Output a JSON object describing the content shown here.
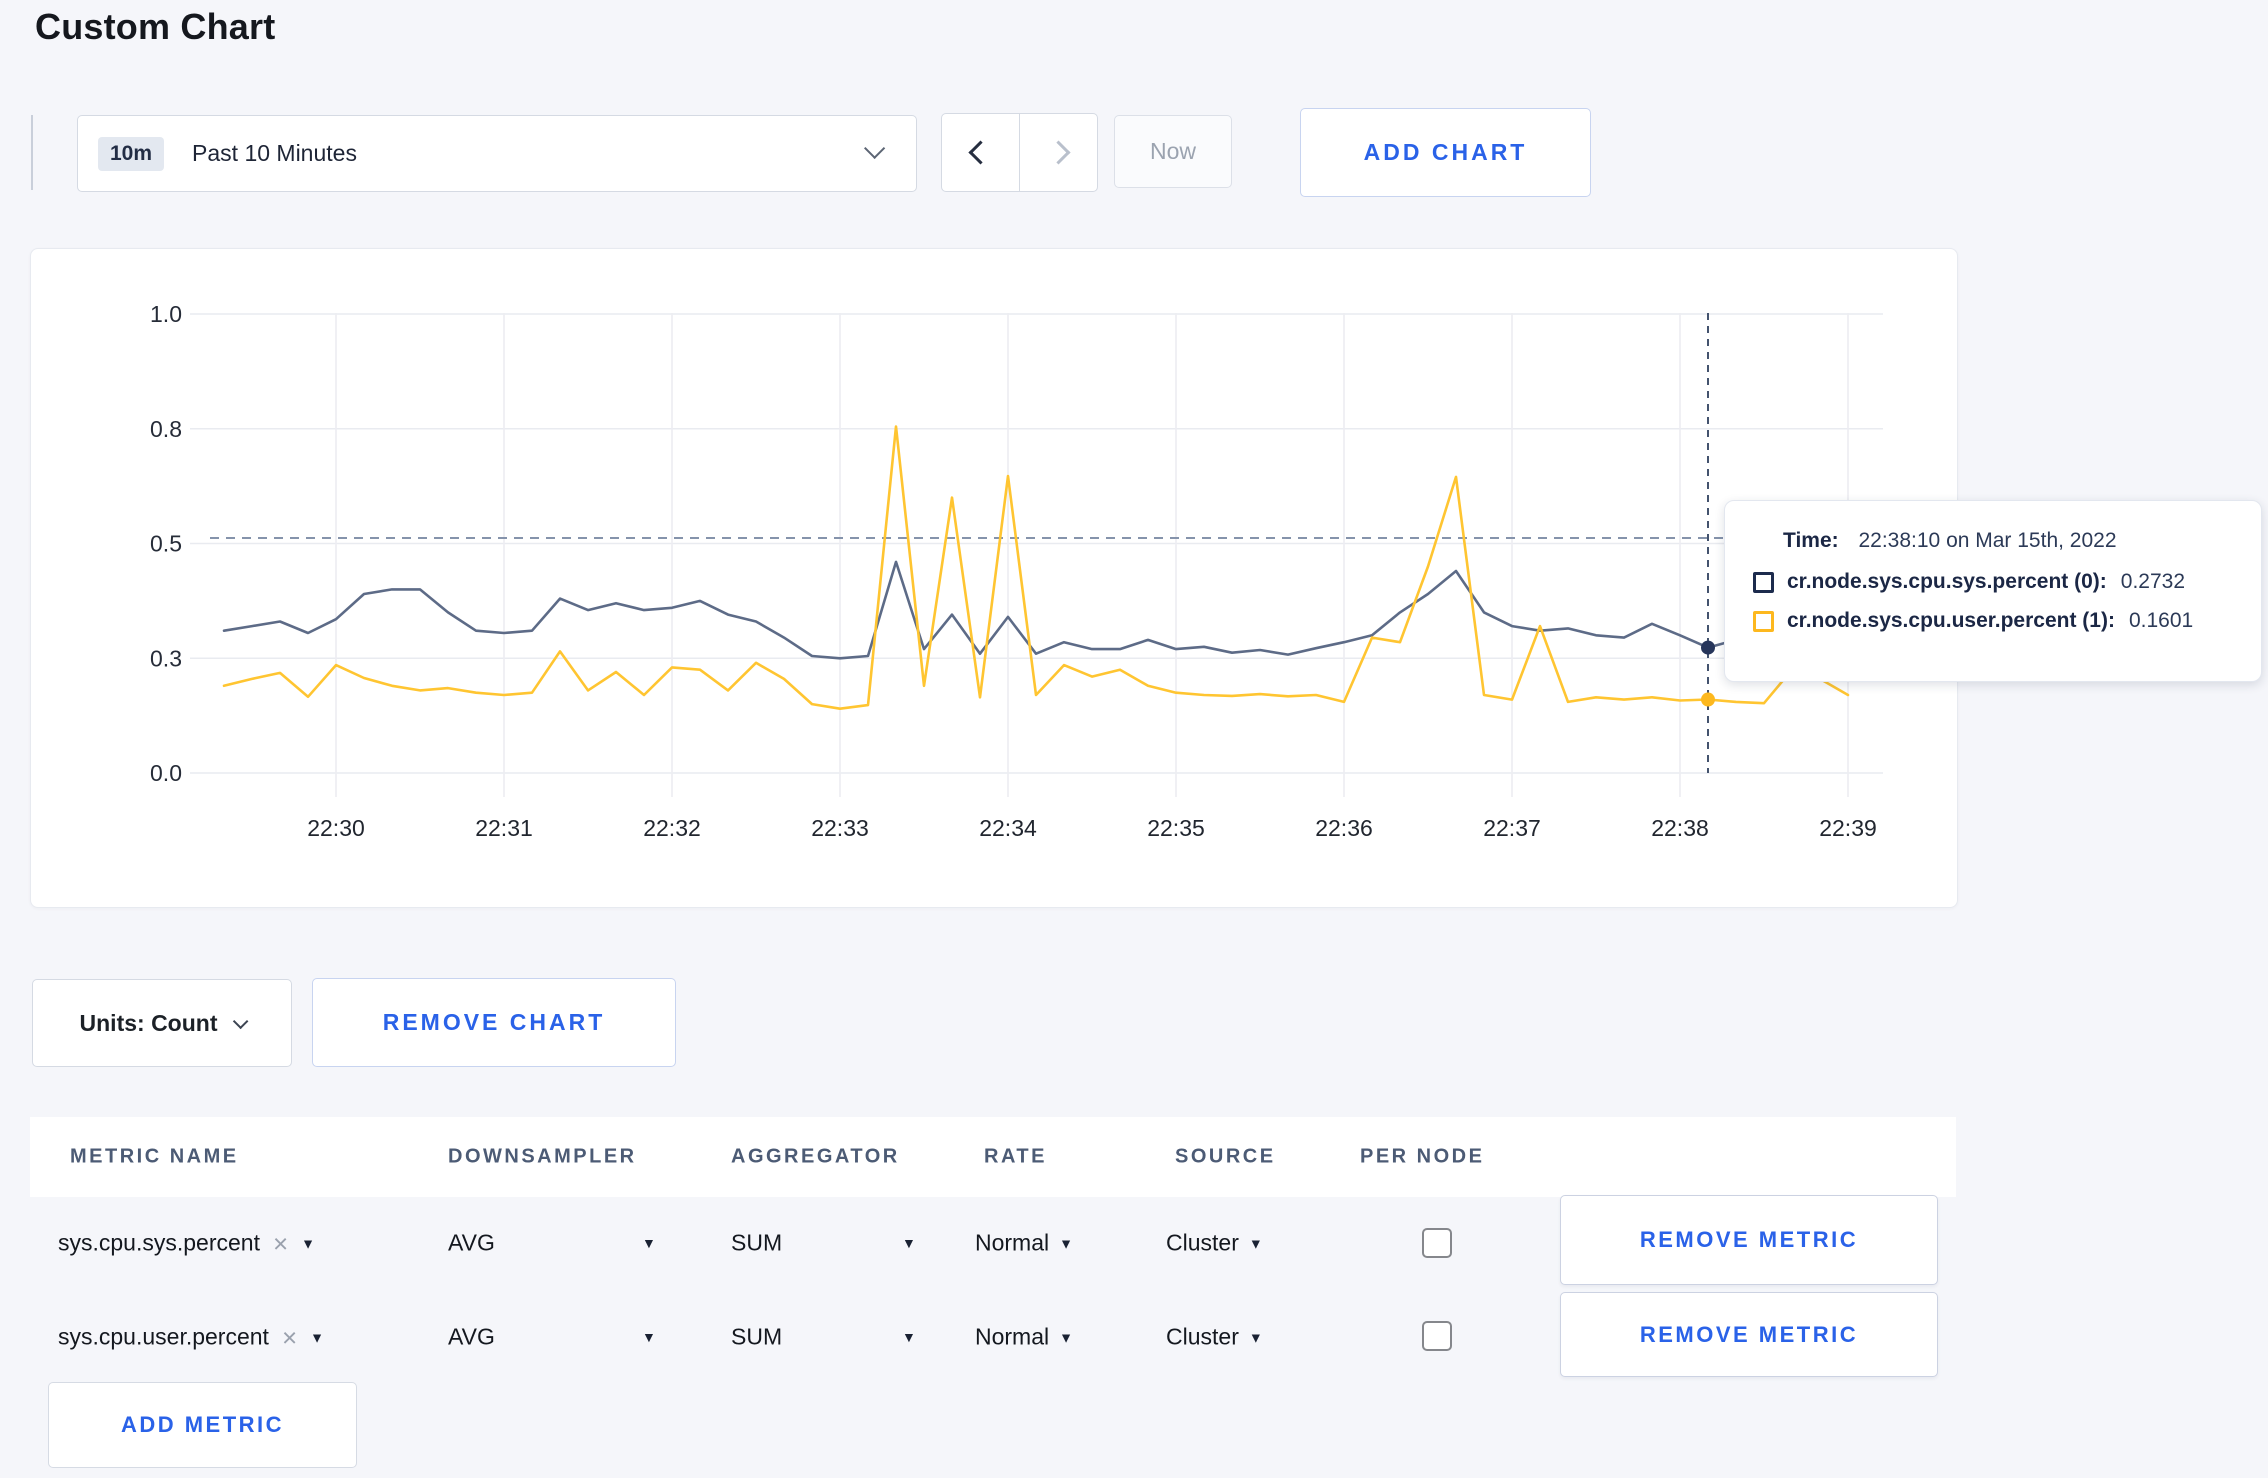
{
  "page": {
    "title": "Custom Chart",
    "background": "#f5f6fa",
    "accent_blue": "#2a62e8"
  },
  "toolbar": {
    "time_badge": "10m",
    "time_range_label": "Past 10 Minutes",
    "prev_icon": "chevron-left",
    "next_icon": "chevron-right",
    "now_label": "Now",
    "add_chart_label": "ADD CHART"
  },
  "chart_controls": {
    "units_label": "Units: Count",
    "remove_chart_label": "REMOVE CHART"
  },
  "tooltip": {
    "time_label": "Time:",
    "time_value": "22:38:10 on Mar 15th, 2022",
    "series": [
      {
        "label": "cr.node.sys.cpu.sys.percent (0):",
        "value": "0.2732",
        "color": "#1c2b4d"
      },
      {
        "label": "cr.node.sys.cpu.user.percent (1):",
        "value": "0.1601",
        "color": "#fdb81e"
      }
    ]
  },
  "chart_data": {
    "type": "line",
    "title": "",
    "xlabel": "",
    "ylabel": "",
    "ylim": [
      0,
      1.0
    ],
    "y_tick_values": [
      1.0,
      0.75,
      0.5,
      0.25,
      0
    ],
    "y_tick_labels": [
      "1.0",
      "0.8",
      "0.5",
      "0.3",
      "0.0"
    ],
    "x_tick_labels": [
      "22:30",
      "22:31",
      "22:32",
      "22:33",
      "22:34",
      "22:35",
      "22:36",
      "22:37",
      "22:38",
      "22:39"
    ],
    "grid": true,
    "legend_position": "tooltip",
    "threshold_line": {
      "value": 0.512,
      "style": "dashed",
      "color": "#8593ab"
    },
    "crosshair": {
      "time": "22:38:10",
      "values": [
        0.2732,
        0.1601
      ],
      "marker_colors": [
        "#26355a",
        "#fdb81e"
      ],
      "line_color": "#44536e"
    },
    "x": [
      "22:29:20",
      "22:29:30",
      "22:29:40",
      "22:29:50",
      "22:30:00",
      "22:30:10",
      "22:30:20",
      "22:30:30",
      "22:30:40",
      "22:30:50",
      "22:31:00",
      "22:31:10",
      "22:31:20",
      "22:31:30",
      "22:31:40",
      "22:31:50",
      "22:32:00",
      "22:32:10",
      "22:32:20",
      "22:32:30",
      "22:32:40",
      "22:32:50",
      "22:33:00",
      "22:33:10",
      "22:33:20",
      "22:33:30",
      "22:33:40",
      "22:33:50",
      "22:34:00",
      "22:34:10",
      "22:34:20",
      "22:34:30",
      "22:34:40",
      "22:34:50",
      "22:35:00",
      "22:35:10",
      "22:35:20",
      "22:35:30",
      "22:35:40",
      "22:35:50",
      "22:36:00",
      "22:36:10",
      "22:36:20",
      "22:36:30",
      "22:36:40",
      "22:36:50",
      "22:37:00",
      "22:37:10",
      "22:37:20",
      "22:37:30",
      "22:37:40",
      "22:37:50",
      "22:38:00",
      "22:38:10",
      "22:38:20",
      "22:38:30",
      "22:38:40",
      "22:38:50",
      "22:39:00"
    ],
    "series": [
      {
        "name": "cr.node.sys.cpu.sys.percent",
        "color": "#5d6b87",
        "values": [
          0.31,
          0.32,
          0.33,
          0.305,
          0.335,
          0.39,
          0.4,
          0.4,
          0.35,
          0.31,
          0.305,
          0.31,
          0.38,
          0.355,
          0.37,
          0.355,
          0.36,
          0.375,
          0.345,
          0.33,
          0.295,
          0.255,
          0.25,
          0.255,
          0.46,
          0.27,
          0.345,
          0.26,
          0.34,
          0.26,
          0.285,
          0.27,
          0.27,
          0.29,
          0.27,
          0.275,
          0.262,
          0.268,
          0.258,
          0.272,
          0.285,
          0.3,
          0.35,
          0.39,
          0.44,
          0.35,
          0.32,
          0.31,
          0.315,
          0.3,
          0.295,
          0.325,
          0.3,
          0.2732,
          0.29,
          0.295,
          0.285,
          0.29,
          0.285
        ]
      },
      {
        "name": "cr.node.sys.cpu.user.percent",
        "color": "#ffc531",
        "values": [
          0.19,
          0.205,
          0.218,
          0.166,
          0.235,
          0.207,
          0.19,
          0.18,
          0.185,
          0.175,
          0.17,
          0.175,
          0.265,
          0.18,
          0.22,
          0.17,
          0.23,
          0.225,
          0.18,
          0.24,
          0.205,
          0.15,
          0.14,
          0.148,
          0.755,
          0.19,
          0.6,
          0.165,
          0.647,
          0.17,
          0.235,
          0.21,
          0.225,
          0.19,
          0.175,
          0.17,
          0.168,
          0.172,
          0.167,
          0.17,
          0.155,
          0.295,
          0.285,
          0.45,
          0.645,
          0.17,
          0.16,
          0.32,
          0.155,
          0.165,
          0.16,
          0.165,
          0.158,
          0.1601,
          0.155,
          0.152,
          0.225,
          0.205,
          0.17
        ]
      }
    ]
  },
  "metrics_table": {
    "columns": [
      "METRIC NAME",
      "DOWNSAMPLER",
      "AGGREGATOR",
      "RATE",
      "SOURCE",
      "PER NODE"
    ],
    "remove_metric_label": "REMOVE METRIC",
    "add_metric_label": "ADD METRIC",
    "rows": [
      {
        "name": "sys.cpu.sys.percent",
        "downsampler": "AVG",
        "aggregator": "SUM",
        "rate": "Normal",
        "source": "Cluster",
        "per_node_checked": false
      },
      {
        "name": "sys.cpu.user.percent",
        "downsampler": "AVG",
        "aggregator": "SUM",
        "rate": "Normal",
        "source": "Cluster",
        "per_node_checked": false
      }
    ]
  }
}
